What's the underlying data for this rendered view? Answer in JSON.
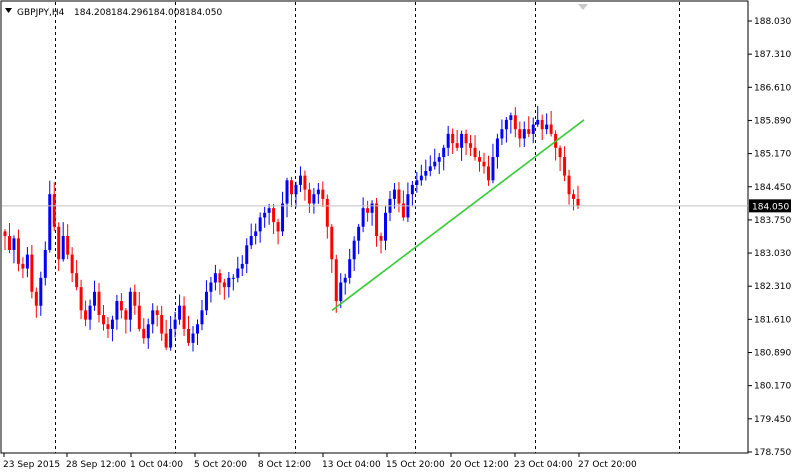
{
  "header": {
    "symbol": "GBPJPY,H4",
    "open": "184.208",
    "high": "184.296",
    "low": "184.008",
    "close": "184.050"
  },
  "price_axis": {
    "labels": [
      "188.030",
      "187.310",
      "186.610",
      "185.890",
      "185.170",
      "184.450",
      "183.750",
      "183.030",
      "182.310",
      "181.610",
      "180.890",
      "180.170",
      "179.450",
      "178.750"
    ]
  },
  "current_price": "184.050",
  "time_axis": {
    "labels": [
      "23 Sep 2015",
      "28 Sep 12:00",
      "1 Oct 04:00",
      "5 Oct 20:00",
      "8 Oct 12:00",
      "13 Oct 04:00",
      "15 Oct 20:00",
      "20 Oct 12:00",
      "23 Oct 04:00",
      "27 Oct 20:00"
    ]
  },
  "colors": {
    "bull": "#0000ff",
    "bear": "#ff0000",
    "trendline": "#32cd32",
    "grid": "#000000",
    "current_price_line": "#c0c0c0",
    "current_price_bg": "#000000",
    "current_price_text": "#ffffff"
  },
  "icons": {
    "symbol_menu": "triangle-down-icon",
    "period_separator_marker": "triangle-down-icon"
  },
  "chart_data": {
    "type": "candlestick",
    "ylim": [
      178.75,
      188.03
    ],
    "trendline": {
      "from": [
        181.8,
        "13 Oct 04:00"
      ],
      "to": [
        185.9,
        "27 Oct 20:00"
      ]
    },
    "closes": [
      183.4,
      183.1,
      183.35,
      182.8,
      182.7,
      183.0,
      182.2,
      181.9,
      182.5,
      183.1,
      184.3,
      183.6,
      182.9,
      183.4,
      183.0,
      182.6,
      182.3,
      181.8,
      181.6,
      181.9,
      182.2,
      181.7,
      181.5,
      181.4,
      181.6,
      182.0,
      181.8,
      181.6,
      182.2,
      181.9,
      181.4,
      181.2,
      181.5,
      181.8,
      181.7,
      181.3,
      181.0,
      181.4,
      181.6,
      181.9,
      181.4,
      181.1,
      181.3,
      181.5,
      181.8,
      182.2,
      182.4,
      182.6,
      182.4,
      182.3,
      182.5,
      182.5,
      182.7,
      182.8,
      183.2,
      183.4,
      183.5,
      183.8,
      183.9,
      184.0,
      183.7,
      183.5,
      184.1,
      184.6,
      184.3,
      184.5,
      184.7,
      184.4,
      184.1,
      184.3,
      184.4,
      184.2,
      183.6,
      182.9,
      182.0,
      182.4,
      182.5,
      182.9,
      183.3,
      183.6,
      184.0,
      183.9,
      184.1,
      183.4,
      183.3,
      183.9,
      184.2,
      184.4,
      184.1,
      183.8,
      184.3,
      184.5,
      184.6,
      184.7,
      184.8,
      184.9,
      185.0,
      185.1,
      185.3,
      185.6,
      185.4,
      185.3,
      185.6,
      185.4,
      185.3,
      185.1,
      185.0,
      184.9,
      184.6,
      185.1,
      185.5,
      185.7,
      185.9,
      186.0,
      185.7,
      185.5,
      185.7,
      185.6,
      185.8,
      185.9,
      185.7,
      185.8,
      185.6,
      185.3,
      185.1,
      184.7,
      184.3,
      184.2,
      184.05
    ]
  }
}
